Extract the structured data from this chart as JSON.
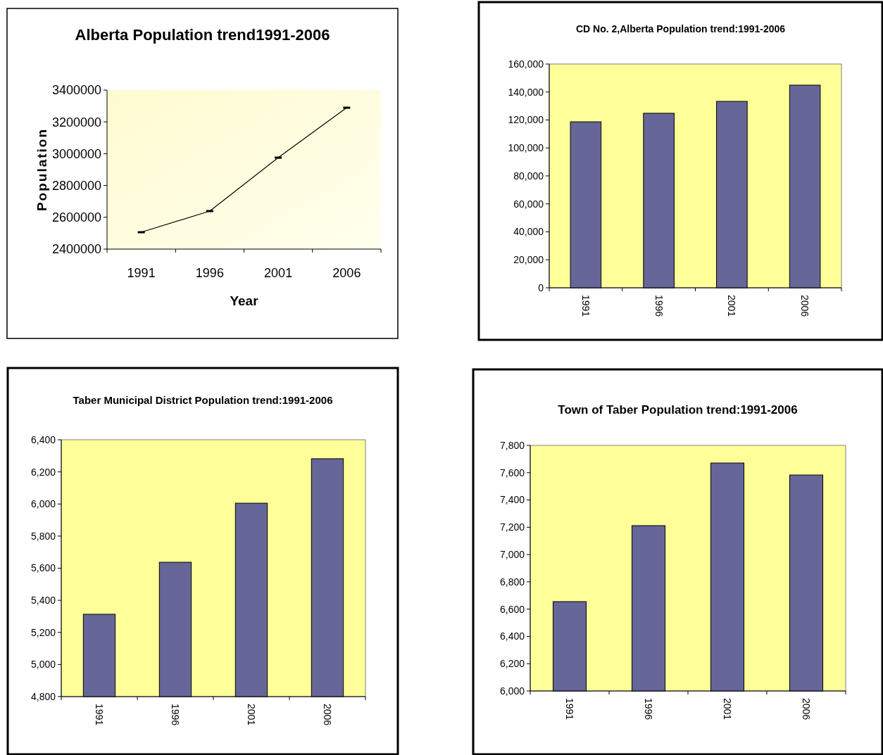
{
  "chart_data": [
    {
      "type": "line",
      "title": "Alberta Population trend1991-2006",
      "xlabel": "Year",
      "ylabel": "Population",
      "categories": [
        "1991",
        "1996",
        "2001",
        "2006"
      ],
      "series": [
        {
          "color": "#000000",
          "values": [
            2506000,
            2639000,
            2975000,
            3289000
          ]
        }
      ],
      "marker": "square",
      "ylim": [
        2400000,
        3400000
      ],
      "yticks": [
        2400000,
        2600000,
        2800000,
        3000000,
        3200000,
        3400000
      ]
    },
    {
      "type": "bar",
      "title": "CD No. 2,Alberta  Population trend:1991-2006",
      "categories": [
        "1991",
        "1996",
        "2001",
        "2006"
      ],
      "values": [
        118700,
        124800,
        133300,
        144900
      ],
      "color": "#666699",
      "ylim": [
        0,
        160000
      ],
      "yticks": [
        0,
        {
          "value": 20000,
          "label": "20,000"
        },
        {
          "value": 40000,
          "label": "40,000"
        },
        {
          "value": 60000,
          "label": "60,000"
        },
        {
          "value": 80000,
          "label": "80,000"
        },
        {
          "value": 100000,
          "label": "100,000"
        },
        {
          "value": 120000,
          "label": "120,000"
        },
        {
          "value": 140000,
          "label": "140,000"
        },
        {
          "value": 160000,
          "label": "160,000"
        }
      ]
    },
    {
      "type": "bar",
      "title": "Taber Municipal District Population trend:1991-2006",
      "categories": [
        "1991",
        "1996",
        "2001",
        "2006"
      ],
      "values": [
        5313,
        5637,
        6005,
        6282
      ],
      "color": "#666699",
      "ylim": [
        4800,
        6400
      ],
      "yticks": [
        {
          "value": 4800,
          "label": "4,800"
        },
        {
          "value": 5000,
          "label": "5,000"
        },
        {
          "value": 5200,
          "label": "5,200"
        },
        {
          "value": 5400,
          "label": "5,400"
        },
        {
          "value": 5600,
          "label": "5,600"
        },
        {
          "value": 5800,
          "label": "5,800"
        },
        {
          "value": 6000,
          "label": "6,000"
        },
        {
          "value": 6200,
          "label": "6,200"
        },
        {
          "value": 6400,
          "label": "6,400"
        }
      ]
    },
    {
      "type": "bar",
      "title": "Town of Taber Population trend:1991-2006",
      "categories": [
        "1991",
        "1996",
        "2001",
        "2006"
      ],
      "values": [
        6655,
        7212,
        7671,
        7583
      ],
      "color": "#666699",
      "ylim": [
        6000,
        7800
      ],
      "yticks": [
        {
          "value": 6000,
          "label": "6,000"
        },
        {
          "value": 6200,
          "label": "6,200"
        },
        {
          "value": 6400,
          "label": "6,400"
        },
        {
          "value": 6600,
          "label": "6,600"
        },
        {
          "value": 6800,
          "label": "6,800"
        },
        {
          "value": 7000,
          "label": "7,000"
        },
        {
          "value": 7200,
          "label": "7,200"
        },
        {
          "value": 7400,
          "label": "7,400"
        },
        {
          "value": 7600,
          "label": "7,600"
        },
        {
          "value": 7800,
          "label": "7,800"
        }
      ]
    }
  ]
}
